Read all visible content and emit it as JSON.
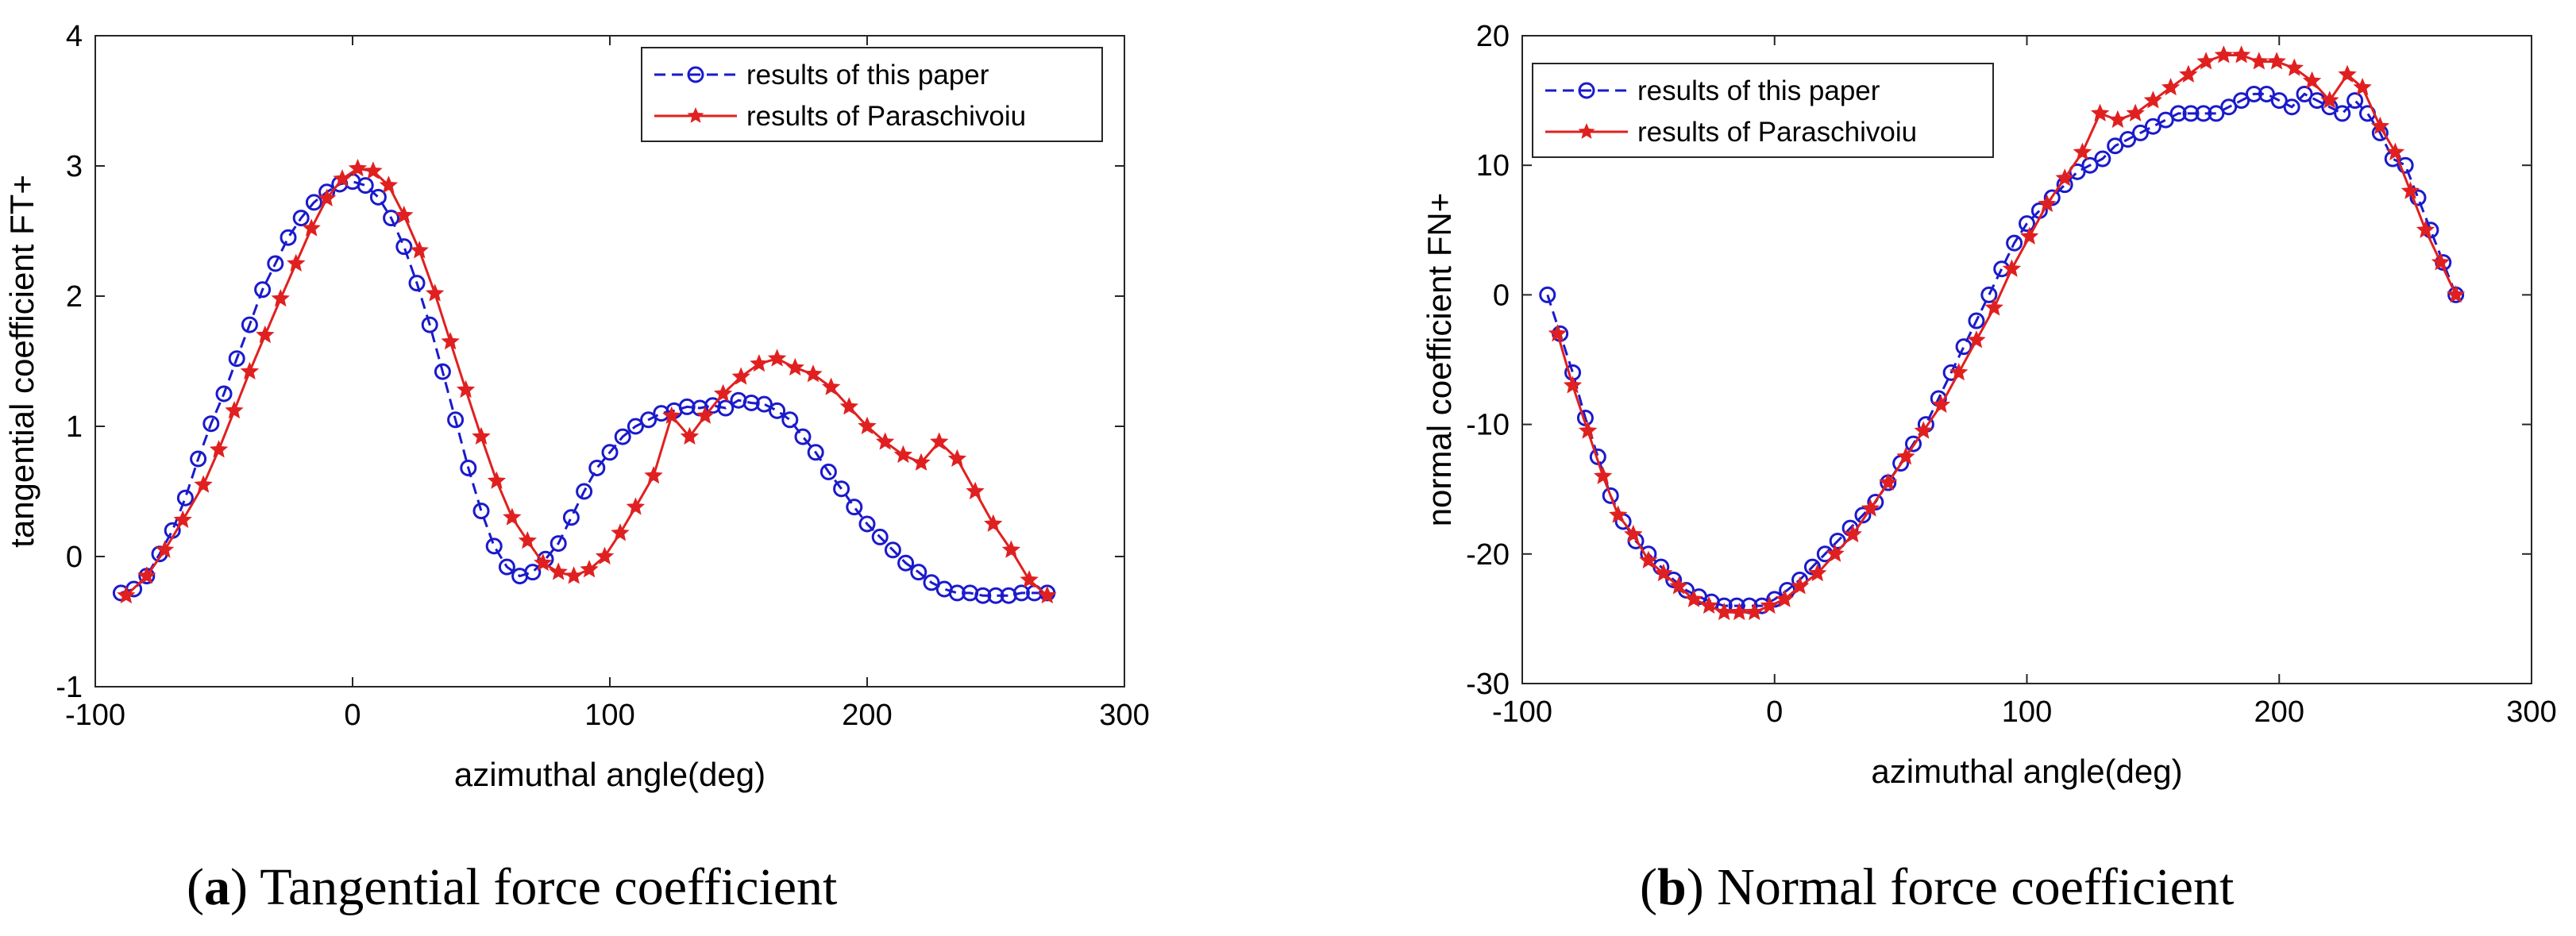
{
  "chart_data": [
    {
      "type": "line",
      "xlabel": "azimuthal angle(deg)",
      "ylabel": "tangential coefficient FT+",
      "xlim": [
        -100,
        300
      ],
      "ylim": [
        -1,
        4
      ],
      "xticks": [
        -100,
        0,
        100,
        200,
        300
      ],
      "yticks": [
        -1,
        0,
        1,
        2,
        3,
        4
      ],
      "xtick_labels": [
        "-100",
        "0",
        "100",
        "200",
        "300"
      ],
      "ytick_labels": [
        "-1",
        "0",
        "1",
        "2",
        "3",
        "4"
      ],
      "legend_position": "top-right",
      "caption": {
        "letter": "a",
        "text": "Tangential force coefficient"
      },
      "series": [
        {
          "name": "results of this paper",
          "color": "#1a1acc",
          "style": "dashed",
          "marker": "circle",
          "x": [
            -90,
            -85,
            -80,
            -75,
            -70,
            -65,
            -60,
            -55,
            -50,
            -45,
            -40,
            -35,
            -30,
            -25,
            -20,
            -15,
            -10,
            -5,
            0,
            5,
            10,
            15,
            20,
            25,
            30,
            35,
            40,
            45,
            50,
            55,
            60,
            65,
            70,
            75,
            80,
            85,
            90,
            95,
            100,
            105,
            110,
            115,
            120,
            125,
            130,
            135,
            140,
            145,
            150,
            155,
            160,
            165,
            170,
            175,
            180,
            185,
            190,
            195,
            200,
            205,
            210,
            215,
            220,
            225,
            230,
            235,
            240,
            245,
            250,
            255,
            260,
            265,
            270
          ],
          "y": [
            -0.28,
            -0.25,
            -0.15,
            0.02,
            0.2,
            0.45,
            0.75,
            1.02,
            1.25,
            1.52,
            1.78,
            2.05,
            2.25,
            2.45,
            2.6,
            2.72,
            2.8,
            2.86,
            2.88,
            2.85,
            2.76,
            2.6,
            2.38,
            2.1,
            1.78,
            1.42,
            1.05,
            0.68,
            0.35,
            0.08,
            -0.08,
            -0.15,
            -0.12,
            -0.02,
            0.1,
            0.3,
            0.5,
            0.68,
            0.8,
            0.92,
            1.0,
            1.05,
            1.1,
            1.12,
            1.15,
            1.14,
            1.16,
            1.14,
            1.2,
            1.18,
            1.17,
            1.12,
            1.05,
            0.92,
            0.8,
            0.65,
            0.52,
            0.38,
            0.25,
            0.15,
            0.05,
            -0.05,
            -0.12,
            -0.2,
            -0.25,
            -0.28,
            -0.28,
            -0.3,
            -0.3,
            -0.3,
            -0.28,
            -0.28,
            -0.28
          ]
        },
        {
          "name": "results of Paraschivoiu",
          "color": "#e02020",
          "style": "solid",
          "marker": "star",
          "x": [
            -88,
            -80,
            -73,
            -66,
            -58,
            -52,
            -46,
            -40,
            -34,
            -28,
            -22,
            -16,
            -10,
            -4,
            2,
            8,
            14,
            20,
            26,
            32,
            38,
            44,
            50,
            56,
            62,
            68,
            74,
            80,
            86,
            92,
            98,
            104,
            110,
            117,
            124,
            131,
            137,
            144,
            151,
            158,
            165,
            172,
            179,
            186,
            193,
            200,
            207,
            214,
            221,
            228,
            235,
            242,
            249,
            256,
            263,
            270
          ],
          "y": [
            -0.3,
            -0.15,
            0.05,
            0.28,
            0.55,
            0.82,
            1.12,
            1.42,
            1.7,
            1.98,
            2.25,
            2.52,
            2.75,
            2.9,
            2.98,
            2.96,
            2.85,
            2.62,
            2.35,
            2.02,
            1.65,
            1.28,
            0.92,
            0.58,
            0.3,
            0.12,
            -0.05,
            -0.12,
            -0.15,
            -0.1,
            0.0,
            0.18,
            0.38,
            0.62,
            1.08,
            0.92,
            1.08,
            1.25,
            1.38,
            1.48,
            1.52,
            1.45,
            1.4,
            1.3,
            1.15,
            1.0,
            0.88,
            0.78,
            0.72,
            0.88,
            0.75,
            0.5,
            0.25,
            0.05,
            -0.18,
            -0.3
          ]
        }
      ]
    },
    {
      "type": "line",
      "xlabel": "azimuthal angle(deg)",
      "ylabel": "normal coefficient FN+",
      "xlim": [
        -100,
        300
      ],
      "ylim": [
        -30,
        20
      ],
      "xticks": [
        -100,
        0,
        100,
        200,
        300
      ],
      "yticks": [
        -30,
        -20,
        -10,
        0,
        10,
        20
      ],
      "xtick_labels": [
        "-100",
        "0",
        "100",
        "200",
        "300"
      ],
      "ytick_labels": [
        "-30",
        "-20",
        "-10",
        "0",
        "10",
        "20"
      ],
      "legend_position": "top-left",
      "caption": {
        "letter": "b",
        "text": "Normal force coefficient"
      },
      "series": [
        {
          "name": "results of this paper",
          "color": "#1a1acc",
          "style": "dashed",
          "marker": "circle",
          "x": [
            -90,
            -85,
            -80,
            -75,
            -70,
            -65,
            -60,
            -55,
            -50,
            -45,
            -40,
            -35,
            -30,
            -25,
            -20,
            -15,
            -10,
            -5,
            0,
            5,
            10,
            15,
            20,
            25,
            30,
            35,
            40,
            45,
            50,
            55,
            60,
            65,
            70,
            75,
            80,
            85,
            90,
            95,
            100,
            105,
            110,
            115,
            120,
            125,
            130,
            135,
            140,
            145,
            150,
            155,
            160,
            165,
            170,
            175,
            180,
            185,
            190,
            195,
            200,
            205,
            210,
            215,
            220,
            225,
            230,
            235,
            240,
            245,
            250,
            255,
            260,
            265,
            270
          ],
          "y": [
            0,
            -3,
            -6,
            -9.5,
            -12.5,
            -15.5,
            -17.5,
            -19,
            -20,
            -21,
            -22,
            -22.8,
            -23.3,
            -23.7,
            -24,
            -24,
            -24,
            -24,
            -23.5,
            -22.8,
            -22,
            -21,
            -20,
            -19,
            -18,
            -17,
            -16,
            -14.5,
            -13,
            -11.5,
            -10,
            -8,
            -6,
            -4,
            -2,
            0,
            2,
            4,
            5.5,
            6.5,
            7.5,
            8.5,
            9.5,
            10,
            10.5,
            11.5,
            12,
            12.5,
            13,
            13.5,
            14,
            14,
            14,
            14,
            14.5,
            15,
            15.5,
            15.5,
            15,
            14.5,
            15.5,
            15,
            14.5,
            14,
            15,
            14,
            12.5,
            10.5,
            10,
            7.5,
            5,
            2.5,
            0
          ]
        },
        {
          "name": "results of Paraschivoiu",
          "color": "#e02020",
          "style": "solid",
          "marker": "star",
          "x": [
            -86,
            -80,
            -74,
            -68,
            -62,
            -56,
            -50,
            -44,
            -38,
            -32,
            -26,
            -20,
            -14,
            -8,
            -2,
            4,
            10,
            17,
            24,
            31,
            38,
            45,
            52,
            59,
            66,
            73,
            80,
            87,
            94,
            101,
            108,
            115,
            122,
            129,
            136,
            143,
            150,
            157,
            164,
            171,
            178,
            185,
            192,
            199,
            206,
            213,
            220,
            227,
            233,
            240,
            246,
            252,
            258,
            264,
            270
          ],
          "y": [
            -3,
            -7,
            -10.5,
            -14,
            -17,
            -18.5,
            -20.5,
            -21.5,
            -22.5,
            -23.5,
            -24,
            -24.5,
            -24.5,
            -24.5,
            -24,
            -23.5,
            -22.5,
            -21.5,
            -20,
            -18.5,
            -16.5,
            -14.5,
            -12.5,
            -10.5,
            -8.5,
            -6,
            -3.5,
            -1,
            2,
            4.5,
            7,
            9,
            11,
            14,
            13.5,
            14,
            15,
            16,
            17,
            18,
            18.5,
            18.5,
            18,
            18,
            17.5,
            16.5,
            15,
            17,
            16,
            13,
            11,
            8,
            5,
            2.5,
            0
          ]
        }
      ]
    }
  ]
}
